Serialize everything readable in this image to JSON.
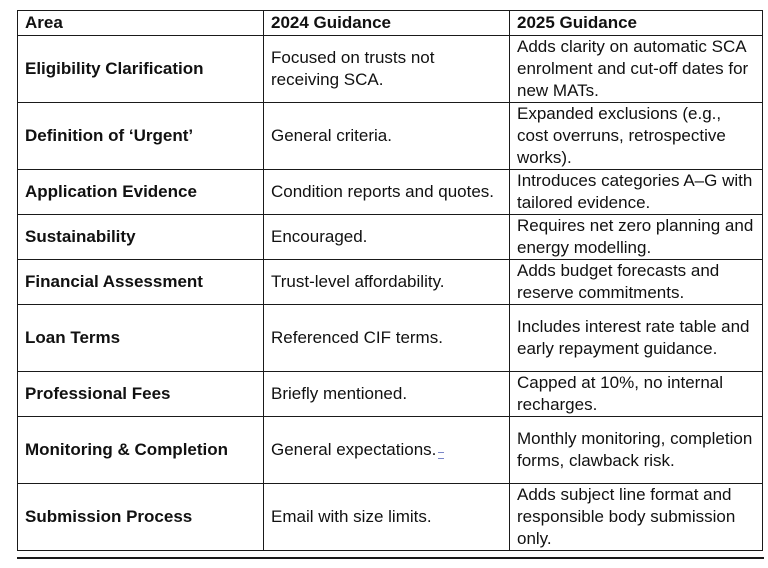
{
  "table": {
    "headers": [
      "Area",
      "2024 Guidance",
      "2025 Guidance"
    ],
    "rows": [
      {
        "area": "Eligibility Clarification",
        "g2024": "Focused on trusts not receiving SCA.",
        "g2025": "Adds clarity on automatic SCA enrolment and cut-off dates for new MATs."
      },
      {
        "area": "Definition of ‘Urgent’",
        "g2024": "General criteria.",
        "g2025": "Expanded exclusions (e.g., cost overruns, retrospective works)."
      },
      {
        "area": "Application Evidence",
        "g2024": "Condition reports and quotes.",
        "g2025": "Introduces categories A–G with tailored evidence."
      },
      {
        "area": "Sustainability",
        "g2024": "Encouraged.",
        "g2025": "Requires net zero planning and energy modelling."
      },
      {
        "area": "Financial Assessment",
        "g2024": "Trust-level affordability.",
        "g2025": "Adds budget forecasts and reserve commitments."
      },
      {
        "area": "Loan Terms",
        "g2024": "Referenced CIF terms.",
        "g2025": "Includes interest rate table and early repayment guidance."
      },
      {
        "area": "Professional Fees",
        "g2024": "Briefly mentioned.",
        "g2025": "Capped at 10%, no internal recharges."
      },
      {
        "area": "Monitoring & Completion",
        "g2024": "General expectations.",
        "g2025": "Monthly monitoring, completion forms, clawback risk."
      },
      {
        "area": "Submission Process",
        "g2024": "Email with size limits.",
        "g2025": "Adds subject line format and responsible body submission only."
      }
    ]
  }
}
